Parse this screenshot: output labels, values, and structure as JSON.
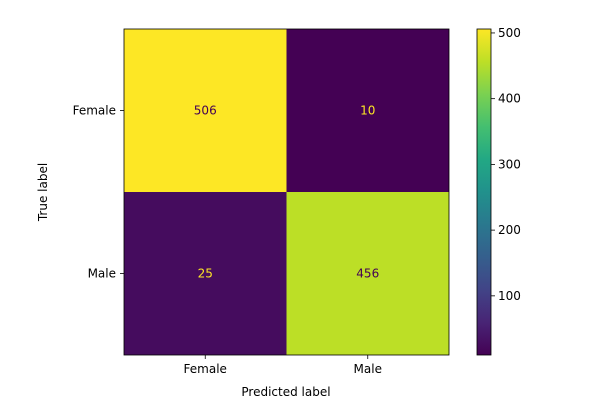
{
  "chart_data": {
    "type": "heatmap",
    "title": "",
    "xlabel": "Predicted label",
    "ylabel": "True label",
    "x_categories": [
      "Female",
      "Male"
    ],
    "y_categories": [
      "Female",
      "Male"
    ],
    "values": [
      [
        506,
        10
      ],
      [
        25,
        456
      ]
    ],
    "colormap": "viridis",
    "colorbar": {
      "ticks": [
        100,
        200,
        300,
        400,
        500
      ],
      "tick_labels": [
        "100",
        "200",
        "300",
        "400",
        "500"
      ],
      "range": [
        10,
        506
      ]
    },
    "text_colors": {
      "on_dark": "#fde725",
      "on_light": "#440154"
    },
    "grid": false
  }
}
